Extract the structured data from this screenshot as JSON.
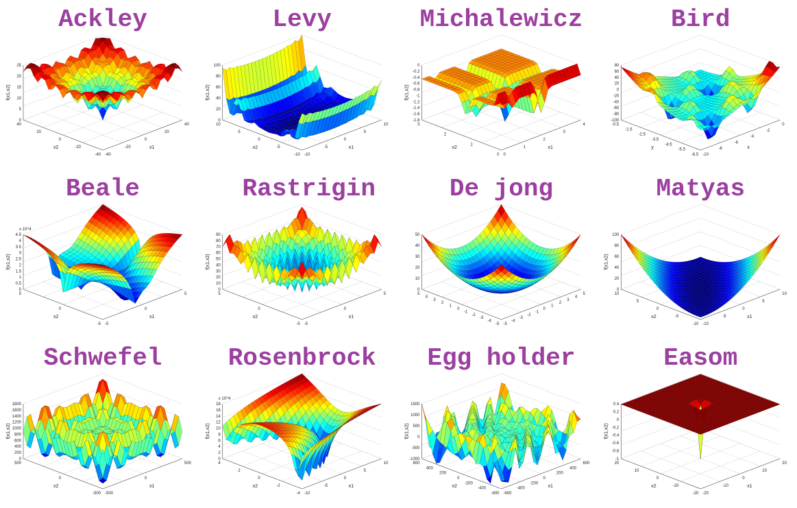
{
  "panels": [
    {
      "title": "Ackley",
      "zlabel": "f(x1,x2)",
      "x1label": "x1",
      "x2label": "x2",
      "zticks": [
        "0",
        "5",
        "10",
        "15",
        "20",
        "25"
      ],
      "x1ticks": [
        "-40",
        "-20",
        "0",
        "20",
        "40"
      ],
      "x2ticks": [
        "-40",
        "-20",
        "0",
        "20",
        "40"
      ]
    },
    {
      "title": "Levy",
      "zlabel": "f(x1,x2)",
      "x1label": "x1",
      "x2label": "x2",
      "zticks": [
        "0",
        "20",
        "40",
        "60",
        "80",
        "100"
      ],
      "x1ticks": [
        "-10",
        "-5",
        "0",
        "5",
        "10"
      ],
      "x2ticks": [
        "-10",
        "-5",
        "0",
        "5",
        "10"
      ]
    },
    {
      "title": "Michalewicz",
      "zlabel": "f(x1,x2)",
      "x1label": "x1",
      "x2label": "x2",
      "zticks": [
        "-1.8",
        "-1.6",
        "-1.4",
        "-1.2",
        "-1",
        "-0.8",
        "-0.6",
        "-0.4",
        "-0.2",
        "0"
      ],
      "x1ticks": [
        "0",
        "1",
        "2",
        "3",
        "4"
      ],
      "x2ticks": [
        "0",
        "1",
        "2",
        "3"
      ]
    },
    {
      "title": "Bird",
      "zlabel": "",
      "x1label": "x",
      "x2label": "y",
      "zticks": [
        "-100",
        "-80",
        "-60",
        "-40",
        "-20",
        "0",
        "20",
        "40",
        "60",
        "80"
      ],
      "x1ticks": [
        "-10",
        "-8",
        "-6",
        "-4",
        "-2",
        "0"
      ],
      "x2ticks": [
        "-6.5",
        "-5.5",
        "-4.5",
        "-3.5",
        "-2.5",
        "-1.5",
        "-0.5"
      ]
    },
    {
      "title": "Beale",
      "zlabel": "f(x1,x2)",
      "x1label": "x1",
      "x2label": "x2",
      "zticks": [
        "0",
        "0.5",
        "1",
        "1.5",
        "2",
        "2.5",
        "3",
        "3.5",
        "4",
        "4.5"
      ],
      "x1ticks": [
        "-5",
        "0",
        "5"
      ],
      "x2ticks": [
        "-5",
        "0",
        "5"
      ],
      "zscale": "x 10^4"
    },
    {
      "title": "Rastrigin",
      "zlabel": "f(x1,x2)",
      "x1label": "x1",
      "x2label": "x2",
      "zticks": [
        "0",
        "10",
        "20",
        "30",
        "40",
        "50",
        "60",
        "70",
        "80",
        "90"
      ],
      "x1ticks": [
        "-5",
        "0",
        "5"
      ],
      "x2ticks": [
        "-5",
        "0",
        "5"
      ]
    },
    {
      "title": "De jong",
      "zlabel": "",
      "x1label": "",
      "x2label": "",
      "zticks": [
        "0",
        "10",
        "20",
        "30",
        "40",
        "50"
      ],
      "x1ticks": [
        "-5",
        "-4",
        "-3",
        "-2",
        "-1",
        "0",
        "1",
        "2",
        "3",
        "4",
        "5"
      ],
      "x2ticks": [
        "-5",
        "-4",
        "-3",
        "-2",
        "-1",
        "0",
        "1",
        "2",
        "3",
        "4",
        "5"
      ]
    },
    {
      "title": "Matyas",
      "zlabel": "f(x1,x2)",
      "x1label": "x1",
      "x2label": "x2",
      "zticks": [
        "0",
        "20",
        "40",
        "60",
        "80",
        "100"
      ],
      "x1ticks": [
        "-10",
        "-5",
        "0",
        "5",
        "10"
      ],
      "x2ticks": [
        "-10",
        "-5",
        "0",
        "5",
        "10"
      ]
    },
    {
      "title": "Schwefel",
      "zlabel": "f(x1,x2)",
      "x1label": "x1",
      "x2label": "x2",
      "zticks": [
        "0",
        "200",
        "400",
        "600",
        "800",
        "1000",
        "1200",
        "1400",
        "1600",
        "1800"
      ],
      "x1ticks": [
        "-500",
        "0",
        "500"
      ],
      "x2ticks": [
        "-500",
        "0",
        "500"
      ]
    },
    {
      "title": "Rosenbrock",
      "zlabel": "f(x1,x2)",
      "x1label": "x1",
      "x2label": "x2",
      "zticks": [
        "0",
        "2",
        "4",
        "6",
        "8",
        "10",
        "12",
        "14",
        "16",
        "18"
      ],
      "x1ticks": [
        "-10",
        "-5",
        "0",
        "5",
        "10"
      ],
      "x2ticks": [
        "-4",
        "-2",
        "0",
        "2",
        "4"
      ],
      "zscale": "x 10^4"
    },
    {
      "title": "Egg holder",
      "zlabel": "f(x1,x2)",
      "x1label": "x1",
      "x2label": "x2",
      "zticks": [
        "-1000",
        "-500",
        "0",
        "500",
        "1000",
        "1500"
      ],
      "x1ticks": [
        "-600",
        "-400",
        "-200",
        "0",
        "200",
        "400",
        "600"
      ],
      "x2ticks": [
        "-600",
        "-400",
        "-200",
        "0",
        "200",
        "400",
        "600"
      ]
    },
    {
      "title": "Easom",
      "zlabel": "f(x1,x2)",
      "x1label": "x1",
      "x2label": "x2",
      "zticks": [
        "-1",
        "-0.8",
        "-0.6",
        "-0.4",
        "-0.2",
        "0",
        "0.2",
        "0.4"
      ],
      "x1ticks": [
        "-20",
        "-10",
        "0",
        "10",
        "20"
      ],
      "x2ticks": [
        "-20",
        "-10",
        "0",
        "10",
        "20"
      ]
    }
  ]
}
